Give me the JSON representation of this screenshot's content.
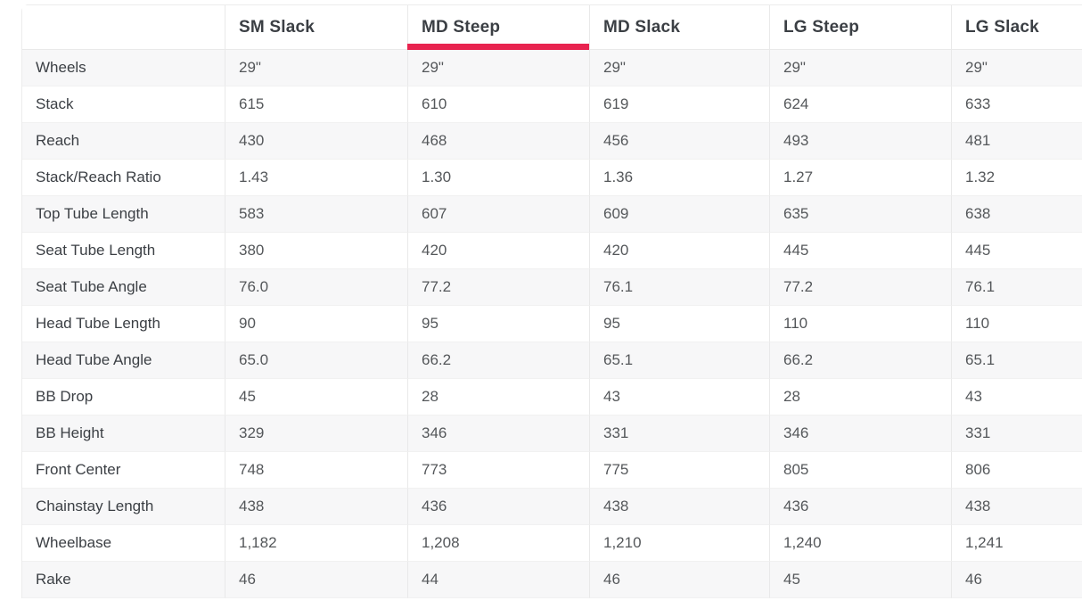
{
  "table": {
    "columns": [
      {
        "label": ""
      },
      {
        "label": "SM Slack",
        "selected": false
      },
      {
        "label": "MD Steep",
        "selected": true
      },
      {
        "label": "MD Slack",
        "selected": false
      },
      {
        "label": "LG Steep",
        "selected": false
      },
      {
        "label": "LG Slack",
        "selected": false
      }
    ],
    "selected_column": "MD Steep",
    "rows": [
      {
        "label": "Wheels",
        "values": [
          "29\"",
          "29\"",
          "29\"",
          "29\"",
          "29\""
        ]
      },
      {
        "label": "Stack",
        "values": [
          "615",
          "610",
          "619",
          "624",
          "633"
        ]
      },
      {
        "label": "Reach",
        "values": [
          "430",
          "468",
          "456",
          "493",
          "481"
        ]
      },
      {
        "label": "Stack/Reach Ratio",
        "values": [
          "1.43",
          "1.30",
          "1.36",
          "1.27",
          "1.32"
        ]
      },
      {
        "label": "Top Tube Length",
        "values": [
          "583",
          "607",
          "609",
          "635",
          "638"
        ]
      },
      {
        "label": "Seat Tube Length",
        "values": [
          "380",
          "420",
          "420",
          "445",
          "445"
        ]
      },
      {
        "label": "Seat Tube Angle",
        "values": [
          "76.0",
          "77.2",
          "76.1",
          "77.2",
          "76.1"
        ]
      },
      {
        "label": "Head Tube Length",
        "values": [
          "90",
          "95",
          "95",
          "110",
          "110"
        ]
      },
      {
        "label": "Head Tube Angle",
        "values": [
          "65.0",
          "66.2",
          "65.1",
          "66.2",
          "65.1"
        ]
      },
      {
        "label": "BB Drop",
        "values": [
          "45",
          "28",
          "43",
          "28",
          "43"
        ]
      },
      {
        "label": "BB Height",
        "values": [
          "329",
          "346",
          "331",
          "346",
          "331"
        ]
      },
      {
        "label": "Front Center",
        "values": [
          "748",
          "773",
          "775",
          "805",
          "806"
        ]
      },
      {
        "label": "Chainstay Length",
        "values": [
          "438",
          "436",
          "438",
          "436",
          "438"
        ]
      },
      {
        "label": "Wheelbase",
        "values": [
          "1,182",
          "1,208",
          "1,210",
          "1,240",
          "1,241"
        ]
      },
      {
        "label": "Rake",
        "values": [
          "46",
          "44",
          "46",
          "45",
          "46"
        ]
      }
    ],
    "colors": {
      "accent": "#e8234f",
      "row_stripe": "#f7f7f8",
      "border": "#e9e9e9",
      "header_text": "#3b3f44",
      "label_text": "#3b3f44",
      "value_text": "#54575a"
    }
  }
}
